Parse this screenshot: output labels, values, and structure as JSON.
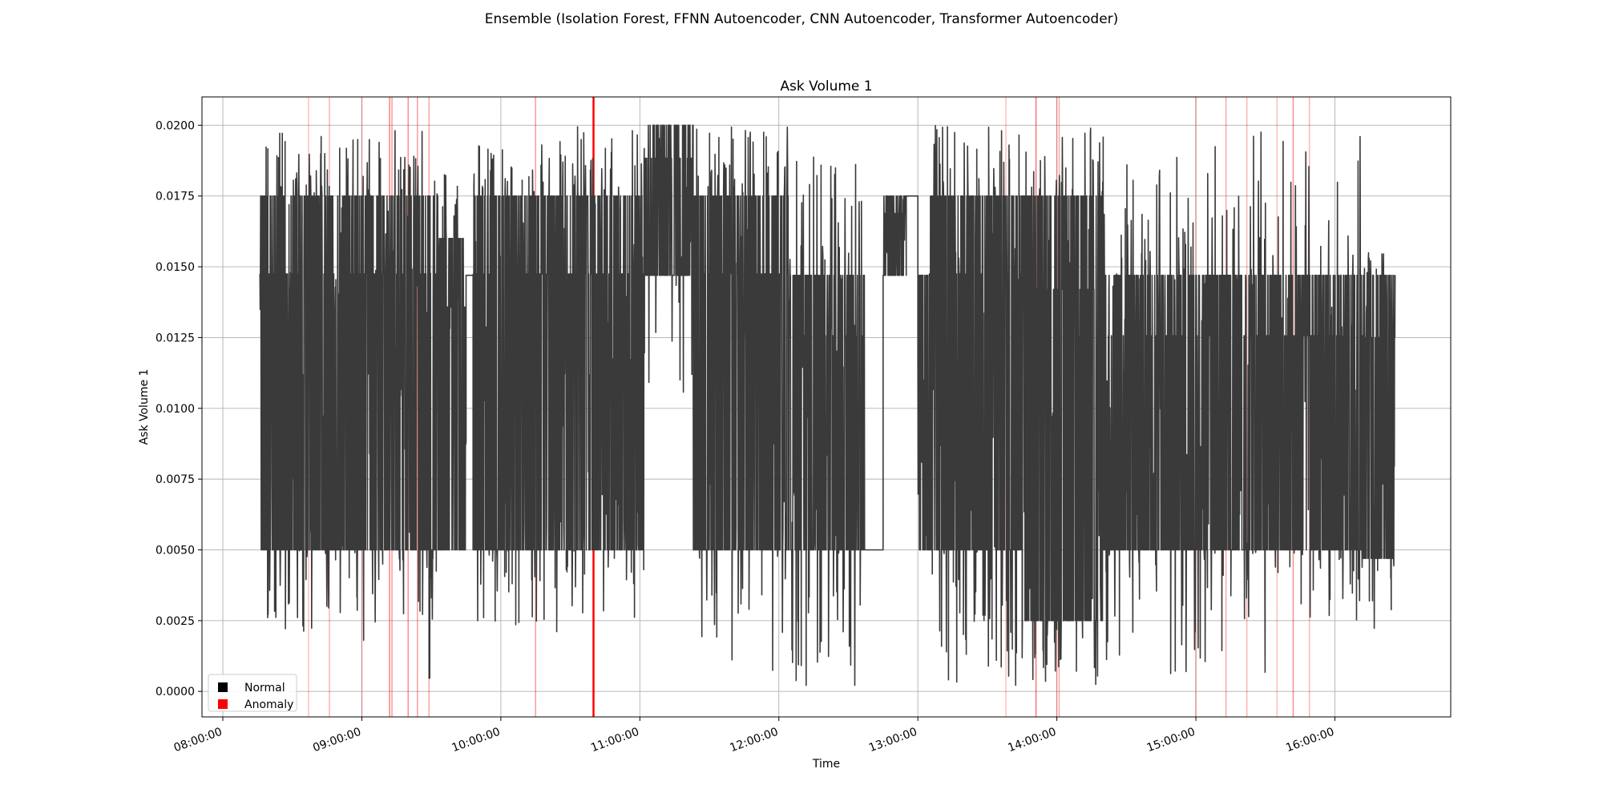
{
  "figure": {
    "suptitle": "Ensemble (Isolation Forest, FFNN Autoencoder, CNN Autoencoder, Transformer Autoencoder)"
  },
  "chart_data": {
    "type": "line",
    "title": "Ask Volume 1",
    "xlabel": "Time",
    "ylabel": "Ask Volume 1",
    "x_ticks": [
      "08:00:00",
      "09:00:00",
      "10:00:00",
      "11:00:00",
      "12:00:00",
      "13:00:00",
      "14:00:00",
      "15:00:00",
      "16:00:00"
    ],
    "y_ticks": [
      "0.0000",
      "0.0025",
      "0.0050",
      "0.0075",
      "0.0100",
      "0.0125",
      "0.0150",
      "0.0175",
      "0.0200"
    ],
    "xlim": [
      "07:51:00",
      "16:50:00"
    ],
    "ylim": [
      -0.0009,
      0.021
    ],
    "grid": true,
    "series": [
      {
        "name": "Normal",
        "color": "#000000",
        "segments": [
          {
            "start": "08:16:00",
            "end": "08:58:00",
            "low": 0.005,
            "high": 0.0175,
            "spike_low": 0.0018,
            "spike_high": 0.02
          },
          {
            "start": "08:58:00",
            "end": "09:33:00",
            "low": 0.005,
            "high": 0.0175,
            "spike_low": 0.0003,
            "spike_high": 0.02
          },
          {
            "start": "09:33:00",
            "end": "09:45:00",
            "low": 0.005,
            "high": 0.016,
            "spike_low": 0.005,
            "spike_high": 0.0187
          },
          {
            "start": "09:45:00",
            "end": "09:48:00",
            "low": 0.0147,
            "high": 0.0147,
            "spike_low": 0.0147,
            "spike_high": 0.0147
          },
          {
            "start": "09:48:00",
            "end": "10:30:00",
            "low": 0.005,
            "high": 0.0175,
            "spike_low": 0.0021,
            "spike_high": 0.0195
          },
          {
            "start": "10:30:00",
            "end": "11:02:00",
            "low": 0.005,
            "high": 0.0175,
            "spike_low": 0.0018,
            "spike_high": 0.02
          },
          {
            "start": "11:02:00",
            "end": "11:23:00",
            "low": 0.0147,
            "high": 0.02,
            "spike_low": 0.0105,
            "spike_high": 0.02
          },
          {
            "start": "11:23:00",
            "end": "12:04:00",
            "low": 0.005,
            "high": 0.0175,
            "spike_low": 0.0004,
            "spike_high": 0.02
          },
          {
            "start": "12:04:00",
            "end": "12:37:00",
            "low": 0.005,
            "high": 0.0147,
            "spike_low": 0.0002,
            "spike_high": 0.019
          },
          {
            "start": "12:37:00",
            "end": "12:45:00",
            "low": 0.005,
            "high": 0.005,
            "spike_low": 0.005,
            "spike_high": 0.005
          },
          {
            "start": "12:45:00",
            "end": "12:55:00",
            "low": 0.0147,
            "high": 0.0175,
            "spike_low": 0.0147,
            "spike_high": 0.0175
          },
          {
            "start": "12:55:00",
            "end": "13:00:00",
            "low": 0.0175,
            "high": 0.0175,
            "spike_low": 0.0147,
            "spike_high": 0.0175
          },
          {
            "start": "13:00:00",
            "end": "13:05:00",
            "low": 0.005,
            "high": 0.0147,
            "spike_low": 0.005,
            "spike_high": 0.0147
          },
          {
            "start": "13:05:00",
            "end": "13:45:00",
            "low": 0.005,
            "high": 0.0175,
            "spike_low": 0.0002,
            "spike_high": 0.02
          },
          {
            "start": "13:45:00",
            "end": "14:20:00",
            "low": 0.0025,
            "high": 0.0175,
            "spike_low": 0.0001,
            "spike_high": 0.02
          },
          {
            "start": "14:20:00",
            "end": "15:00:00",
            "low": 0.005,
            "high": 0.0147,
            "spike_low": 0.0001,
            "spike_high": 0.019
          },
          {
            "start": "15:00:00",
            "end": "15:40:00",
            "low": 0.005,
            "high": 0.0147,
            "spike_low": 0.0006,
            "spike_high": 0.02
          },
          {
            "start": "15:40:00",
            "end": "16:12:00",
            "low": 0.005,
            "high": 0.0147,
            "spike_low": 0.0025,
            "spike_high": 0.02
          },
          {
            "start": "16:12:00",
            "end": "16:26:00",
            "low": 0.0047,
            "high": 0.0147,
            "spike_low": 0.0021,
            "spike_high": 0.0156
          }
        ]
      },
      {
        "name": "Anomaly",
        "color": "#ff0000",
        "anomaly_times": [
          {
            "t": "08:37:00",
            "strength": 0.25
          },
          {
            "t": "08:46:00",
            "strength": 0.3
          },
          {
            "t": "09:00:00",
            "strength": 0.25
          },
          {
            "t": "09:12:00",
            "strength": 0.5
          },
          {
            "t": "09:13:00",
            "strength": 0.4
          },
          {
            "t": "09:20:00",
            "strength": 0.45
          },
          {
            "t": "09:24:00",
            "strength": 0.4
          },
          {
            "t": "09:29:00",
            "strength": 0.35
          },
          {
            "t": "10:15:00",
            "strength": 0.4
          },
          {
            "t": "10:40:00",
            "strength": 1.0
          },
          {
            "t": "13:38:00",
            "strength": 0.25
          },
          {
            "t": "13:51:00",
            "strength": 0.55
          },
          {
            "t": "14:00:00",
            "strength": 0.3
          },
          {
            "t": "14:01:00",
            "strength": 0.35
          },
          {
            "t": "15:00:00",
            "strength": 0.3
          },
          {
            "t": "15:13:00",
            "strength": 0.35
          },
          {
            "t": "15:22:00",
            "strength": 0.3
          },
          {
            "t": "15:35:00",
            "strength": 0.25
          },
          {
            "t": "15:42:00",
            "strength": 0.45
          },
          {
            "t": "15:49:00",
            "strength": 0.3
          }
        ]
      }
    ],
    "legend": {
      "placement": "lower-left",
      "entries": [
        {
          "label": "Normal",
          "color": "#000000"
        },
        {
          "label": "Anomaly",
          "color": "#ff0000"
        }
      ]
    }
  }
}
